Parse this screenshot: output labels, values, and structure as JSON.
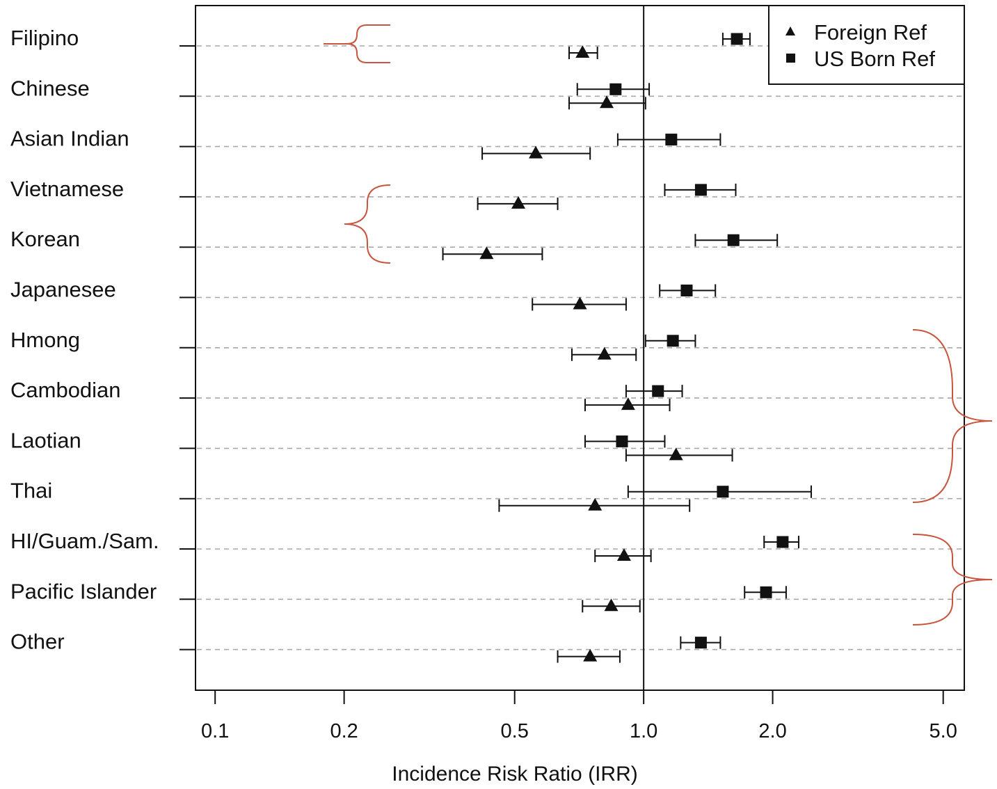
{
  "colors": {
    "ink": "#111111",
    "gridline": "#a8a8a8",
    "bracket": "#c8553d"
  },
  "chart_data": {
    "type": "forest",
    "scale": "log",
    "title": "",
    "xlabel": "Incidence Risk Ratio (IRR)",
    "ylabel": "",
    "xlim": [
      0.09,
      5.6
    ],
    "xticks": [
      0.1,
      0.2,
      0.5,
      1.0,
      2.0,
      5.0
    ],
    "xtick_labels": [
      "0.1",
      "0.2",
      "0.5",
      "1.0",
      "2.0",
      "5.0"
    ],
    "reference_line": 1.0,
    "grid": "horizontal dashed",
    "legend": {
      "position": "top-right",
      "entries": [
        {
          "label": "Foreign Ref",
          "marker": "triangle"
        },
        {
          "label": "US Born Ref",
          "marker": "square"
        }
      ]
    },
    "categories": [
      "Filipino",
      "Chinese",
      "Asian Indian",
      "Vietnamese",
      "Korean",
      "Japanesee",
      "Hmong",
      "Cambodian",
      "Laotian",
      "Thai",
      "HI/Guam./Sam.",
      "Pacific Islander",
      "Other"
    ],
    "series": [
      {
        "name": "US Born Ref",
        "marker": "square",
        "points": [
          {
            "est": 1.65,
            "lo": 1.53,
            "hi": 1.77
          },
          {
            "est": 0.86,
            "lo": 0.7,
            "hi": 1.03
          },
          {
            "est": 1.16,
            "lo": 0.87,
            "hi": 1.51
          },
          {
            "est": 1.36,
            "lo": 1.12,
            "hi": 1.64
          },
          {
            "est": 1.62,
            "lo": 1.32,
            "hi": 2.05
          },
          {
            "est": 1.26,
            "lo": 1.09,
            "hi": 1.47
          },
          {
            "est": 1.17,
            "lo": 1.01,
            "hi": 1.32
          },
          {
            "est": 1.08,
            "lo": 0.91,
            "hi": 1.23
          },
          {
            "est": 0.89,
            "lo": 0.73,
            "hi": 1.12
          },
          {
            "est": 1.53,
            "lo": 0.92,
            "hi": 2.46
          },
          {
            "est": 2.11,
            "lo": 1.91,
            "hi": 2.3
          },
          {
            "est": 1.93,
            "lo": 1.72,
            "hi": 2.15
          },
          {
            "est": 1.36,
            "lo": 1.22,
            "hi": 1.51
          }
        ]
      },
      {
        "name": "Foreign Ref",
        "marker": "triangle",
        "points": [
          {
            "est": 0.72,
            "lo": 0.67,
            "hi": 0.78
          },
          {
            "est": 0.82,
            "lo": 0.67,
            "hi": 1.01
          },
          {
            "est": 0.56,
            "lo": 0.42,
            "hi": 0.75
          },
          {
            "est": 0.51,
            "lo": 0.41,
            "hi": 0.63
          },
          {
            "est": 0.43,
            "lo": 0.34,
            "hi": 0.58
          },
          {
            "est": 0.71,
            "lo": 0.55,
            "hi": 0.91
          },
          {
            "est": 0.81,
            "lo": 0.68,
            "hi": 0.96
          },
          {
            "est": 0.92,
            "lo": 0.73,
            "hi": 1.15
          },
          {
            "est": 1.19,
            "lo": 0.91,
            "hi": 1.61
          },
          {
            "est": 0.77,
            "lo": 0.46,
            "hi": 1.28
          },
          {
            "est": 0.9,
            "lo": 0.77,
            "hi": 1.04
          },
          {
            "est": 0.84,
            "lo": 0.72,
            "hi": 0.98
          },
          {
            "est": 0.75,
            "lo": 0.63,
            "hi": 0.88
          }
        ]
      }
    ]
  }
}
